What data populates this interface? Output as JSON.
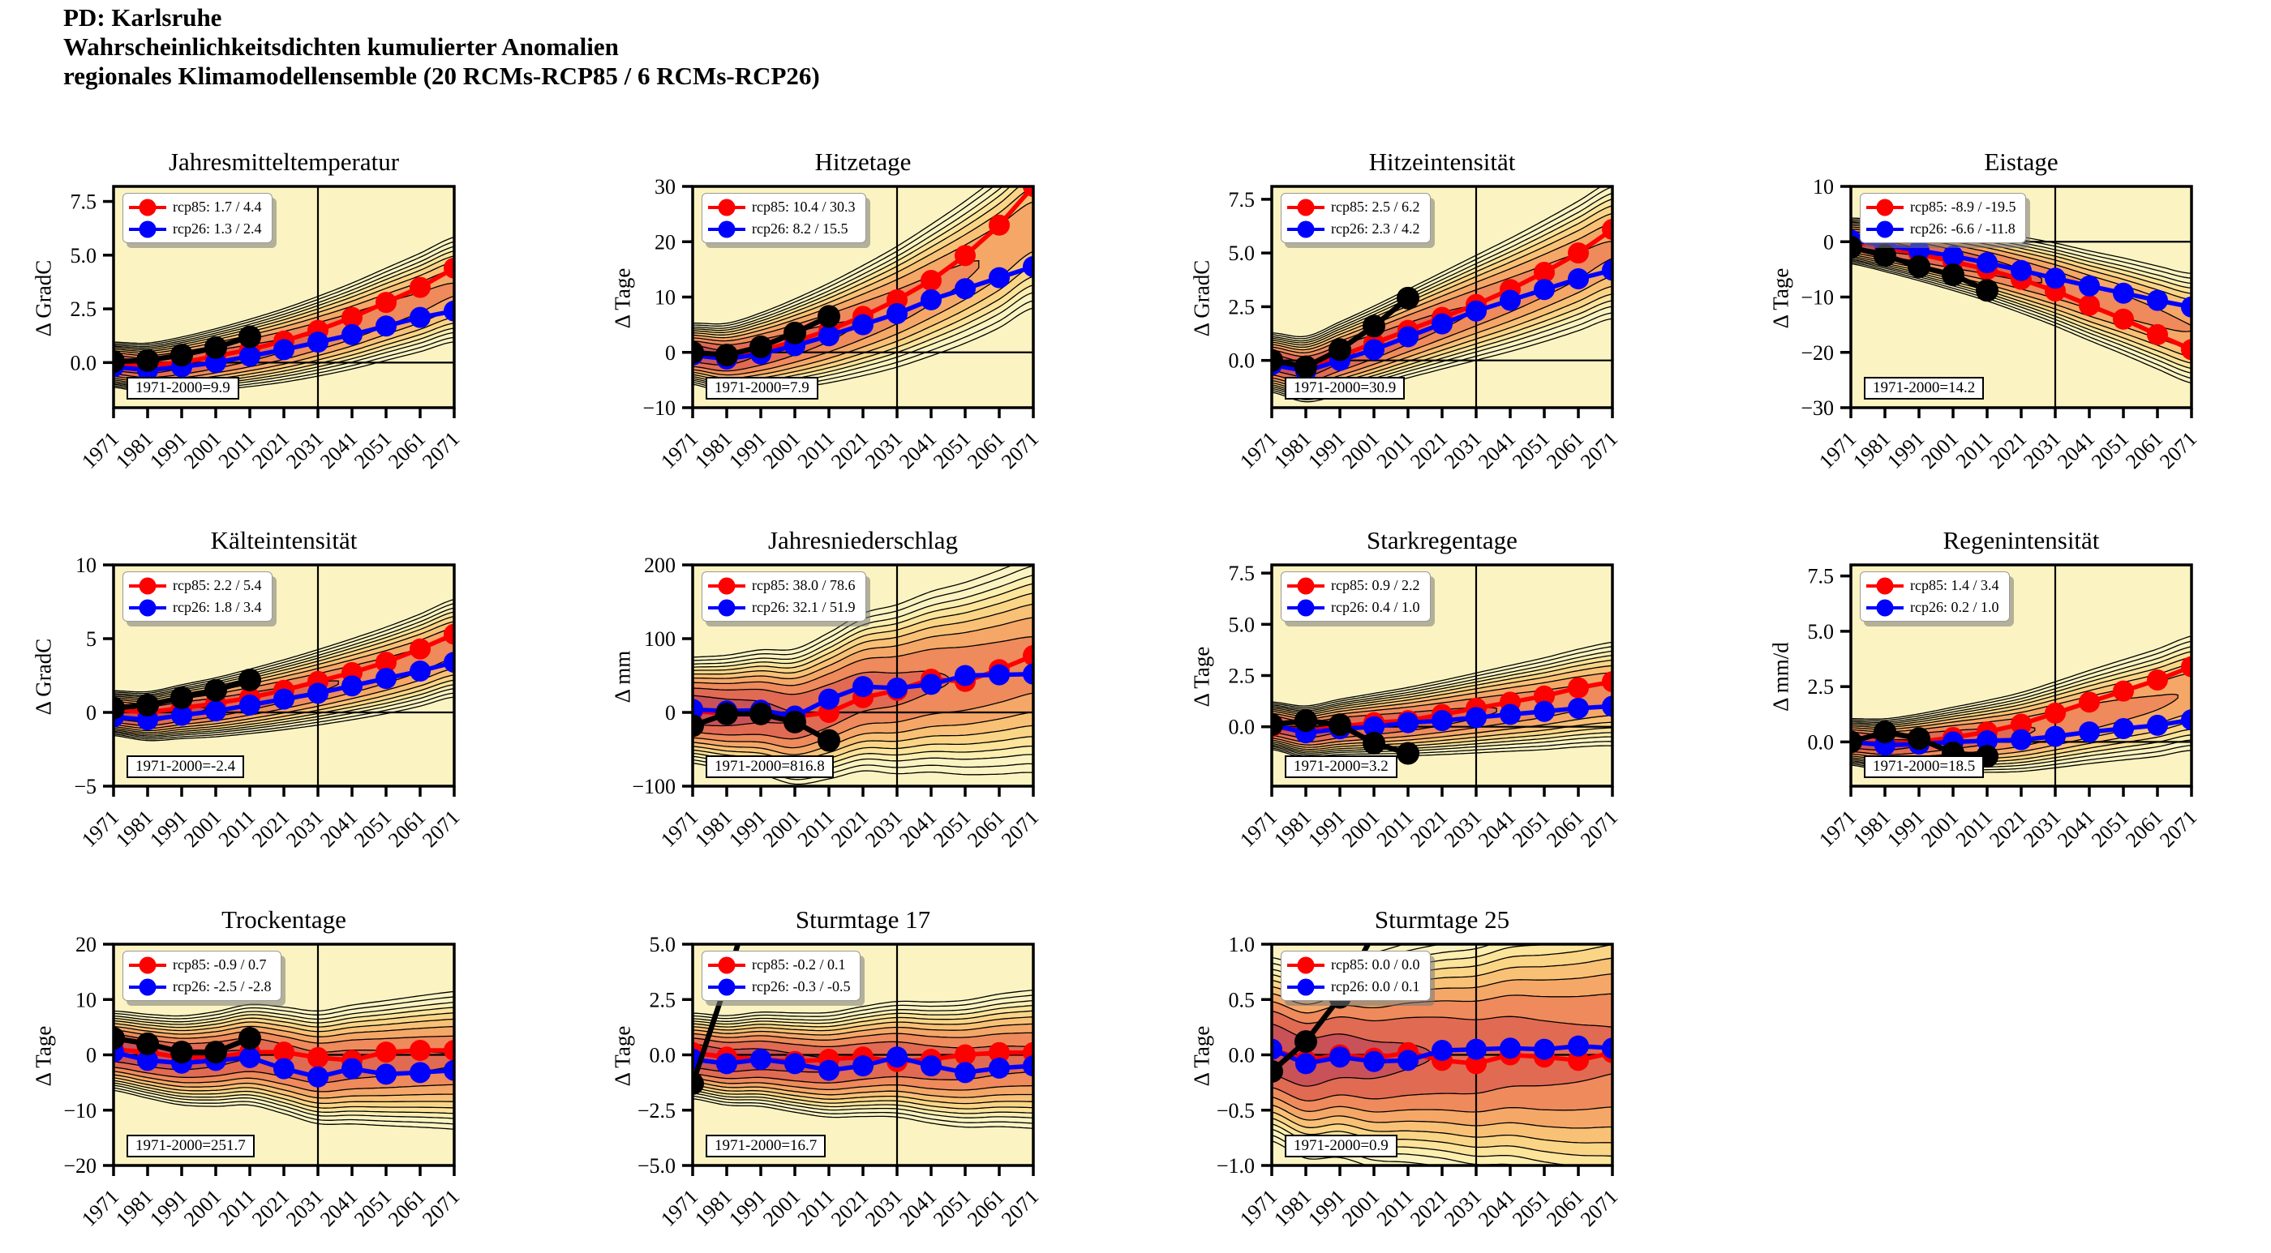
{
  "header": {
    "line1": "PD: Karlsruhe",
    "line2": "Wahrscheinlichkeitsdichten kumulierter Anomalien",
    "line3": "regionales Klimamodellensemble (20 RCMs-RCP85 / 6 RCMs-RCP26)"
  },
  "colors": {
    "rcp85": "#ff0000",
    "rcp26": "#0000ff",
    "historical": "#000000",
    "plot_bg": "#fbf4c2",
    "contour_bands": [
      "#fcefb0",
      "#fce49b",
      "#fbd586",
      "#f9c176",
      "#f5a767",
      "#ee8a5b",
      "#e16a52",
      "#c95158"
    ],
    "contour_line": "#000000"
  },
  "axis": {
    "x": [
      1971,
      1981,
      1991,
      2001,
      2011,
      2021,
      2031,
      2041,
      2051,
      2061,
      2071
    ],
    "xtick_labels": [
      "1971",
      "1981",
      "1991",
      "2001",
      "2011",
      "2021",
      "2031",
      "2041",
      "2051",
      "2061",
      "2071"
    ],
    "xlim": [
      1971,
      2071
    ],
    "vline_year": 2031,
    "hline_value": 0,
    "grid": false,
    "legend_position": "upper left"
  },
  "chart_data": [
    {
      "type": "line",
      "title": "Jahresmitteltemperatur",
      "ylabel": "Δ GradC",
      "ylim": [
        -2.1,
        8.2
      ],
      "ytick_values": [
        7.5,
        5.0,
        2.5,
        0.0
      ],
      "ytick_labels": [
        "7.5",
        "5.0",
        "2.5",
        "0.0"
      ],
      "legend": {
        "rcp85": "rcp85: 1.7 / 4.4",
        "rcp26": "rcp26: 1.3 / 2.4"
      },
      "annotation": "1971-2000=9.9",
      "series": [
        {
          "name": "rcp85",
          "values": [
            0.0,
            -0.15,
            0.0,
            0.3,
            0.6,
            1.0,
            1.5,
            2.1,
            2.8,
            3.5,
            4.4
          ]
        },
        {
          "name": "rcp26",
          "values": [
            -0.2,
            -0.35,
            -0.2,
            0.0,
            0.3,
            0.6,
            0.95,
            1.3,
            1.7,
            2.1,
            2.4
          ]
        },
        {
          "name": "beobachtet",
          "years": [
            1971,
            1981,
            1991,
            2001,
            2011
          ],
          "values": [
            0.05,
            0.1,
            0.35,
            0.7,
            1.2
          ]
        }
      ],
      "density_approx": {
        "sigma0": 0.38,
        "grow": 1.7
      }
    },
    {
      "type": "line",
      "title": "Hitzetage",
      "ylabel": "Δ Tage",
      "ylim": [
        -10,
        30
      ],
      "ytick_values": [
        30,
        20,
        10,
        0,
        -10
      ],
      "ytick_labels": [
        "30",
        "20",
        "10",
        "0",
        "−10"
      ],
      "legend": {
        "rcp85": "rcp85: 10.4 / 30.3",
        "rcp26": "rcp26: 8.2 / 15.5"
      },
      "annotation": "1971-2000=7.9",
      "series": [
        {
          "name": "rcp85",
          "values": [
            0,
            -0.8,
            0.3,
            2,
            4,
            6.5,
            9.5,
            13,
            17.5,
            23,
            30
          ]
        },
        {
          "name": "rcp26",
          "values": [
            -0.5,
            -1.2,
            -0.3,
            1.2,
            3,
            5,
            7,
            9.5,
            11.5,
            13.5,
            15.5
          ]
        },
        {
          "name": "beobachtet",
          "years": [
            1971,
            1981,
            1991,
            2001,
            2011
          ],
          "values": [
            0,
            -0.5,
            1,
            3.5,
            6.5
          ]
        }
      ],
      "density_approx": {
        "sigma0": 2.0,
        "grow": 2.2
      }
    },
    {
      "type": "line",
      "title": "Hitzeintensität",
      "ylabel": "Δ GradC",
      "ylim": [
        -2.2,
        8.1
      ],
      "ytick_values": [
        7.5,
        5.0,
        2.5,
        0.0
      ],
      "ytick_labels": [
        "7.5",
        "5.0",
        "2.5",
        "0.0"
      ],
      "legend": {
        "rcp85": "rcp85: 2.5 / 6.2",
        "rcp26": "rcp26: 2.3 / 4.2"
      },
      "annotation": "1971-2000=30.9",
      "series": [
        {
          "name": "rcp85",
          "values": [
            0,
            -0.3,
            0.2,
            0.8,
            1.4,
            2.0,
            2.6,
            3.3,
            4.1,
            5.0,
            6.1
          ]
        },
        {
          "name": "rcp26",
          "values": [
            -0.2,
            -0.5,
            0.0,
            0.5,
            1.1,
            1.7,
            2.3,
            2.8,
            3.3,
            3.8,
            4.2
          ]
        },
        {
          "name": "beobachtet",
          "years": [
            1971,
            1981,
            1991,
            2001,
            2011
          ],
          "values": [
            0,
            -0.3,
            0.5,
            1.6,
            2.9
          ]
        }
      ],
      "density_approx": {
        "sigma0": 0.5,
        "grow": 1.7
      }
    },
    {
      "type": "line",
      "title": "Eistage",
      "ylabel": "Δ Tage",
      "ylim": [
        -30,
        10
      ],
      "ytick_values": [
        10,
        0,
        -10,
        -20,
        -30
      ],
      "ytick_labels": [
        "10",
        "0",
        "−10",
        "−20",
        "−30"
      ],
      "legend": {
        "rcp85": "rcp85: -8.9 / -19.5",
        "rcp26": "rcp26: -6.6 / -11.8"
      },
      "annotation": "1971-2000=14.2",
      "series": [
        {
          "name": "rcp85",
          "values": [
            0,
            -1,
            -2.2,
            -3.6,
            -5,
            -6.8,
            -8.9,
            -11.5,
            -14,
            -16.8,
            -19.5
          ]
        },
        {
          "name": "rcp26",
          "values": [
            0.3,
            -0.6,
            -1.6,
            -2.6,
            -3.8,
            -5.2,
            -6.6,
            -8,
            -9.3,
            -10.6,
            -11.8
          ]
        },
        {
          "name": "beobachtet",
          "years": [
            1971,
            1981,
            1991,
            2001,
            2011
          ],
          "values": [
            -1,
            -2.5,
            -4.5,
            -6,
            -8.8
          ]
        }
      ],
      "density_approx": {
        "sigma0": 1.5,
        "grow": 1.8
      }
    },
    {
      "type": "line",
      "title": "Kälteintensität",
      "ylabel": "Δ GradC",
      "ylim": [
        -5,
        10
      ],
      "ytick_values": [
        10,
        5,
        0,
        -5
      ],
      "ytick_labels": [
        "10",
        "5",
        "0",
        "−5"
      ],
      "legend": {
        "rcp85": "rcp85: 2.2 / 5.4",
        "rcp26": "rcp26: 1.8 / 3.4"
      },
      "annotation": "1971-2000=-2.4",
      "series": [
        {
          "name": "rcp85",
          "values": [
            0.2,
            0.0,
            0.3,
            0.6,
            1.0,
            1.5,
            2.1,
            2.7,
            3.4,
            4.3,
            5.3
          ]
        },
        {
          "name": "rcp26",
          "values": [
            -0.3,
            -0.5,
            -0.2,
            0.1,
            0.5,
            0.9,
            1.3,
            1.8,
            2.3,
            2.8,
            3.4
          ]
        },
        {
          "name": "beobachtet",
          "years": [
            1971,
            1981,
            1991,
            2001,
            2011
          ],
          "values": [
            0.3,
            0.5,
            1.0,
            1.5,
            2.2
          ]
        }
      ],
      "density_approx": {
        "sigma0": 0.55,
        "grow": 1.5
      }
    },
    {
      "type": "line",
      "title": "Jahresniederschlag",
      "ylabel": "Δ mm",
      "ylim": [
        -100,
        200
      ],
      "ytick_values": [
        200,
        100,
        0,
        -100
      ],
      "ytick_labels": [
        "200",
        "100",
        "0",
        "−100"
      ],
      "legend": {
        "rcp85": "rcp85: 38.0 / 78.6",
        "rcp26": "rcp26: 32.1 / 51.9"
      },
      "annotation": "1971-2000=816.8",
      "series": [
        {
          "name": "rcp85",
          "values": [
            2,
            -2,
            -2,
            -6,
            0,
            20,
            30,
            45,
            42,
            58,
            77
          ]
        },
        {
          "name": "rcp26",
          "values": [
            4,
            2,
            3,
            -5,
            18,
            35,
            33,
            38,
            50,
            51,
            52
          ]
        },
        {
          "name": "beobachtet",
          "years": [
            1971,
            1981,
            1991,
            2001,
            2011
          ],
          "values": [
            -18,
            -2,
            -2,
            -13,
            -38
          ]
        }
      ],
      "density_approx": {
        "sigma0": 26,
        "grow": 1.3
      }
    },
    {
      "type": "line",
      "title": "Starkregentage",
      "ylabel": "Δ Tage",
      "ylim": [
        -2.9,
        7.9
      ],
      "ytick_values": [
        7.5,
        5.0,
        2.5,
        0.0
      ],
      "ytick_labels": [
        "7.5",
        "5.0",
        "2.5",
        "0.0"
      ],
      "legend": {
        "rcp85": "rcp85: 0.9 / 2.2",
        "rcp26": "rcp26: 0.4 / 1.0"
      },
      "annotation": "1971-2000=3.2",
      "series": [
        {
          "name": "rcp85",
          "values": [
            0.0,
            -0.2,
            0.0,
            0.2,
            0.3,
            0.6,
            0.9,
            1.2,
            1.5,
            1.9,
            2.2
          ]
        },
        {
          "name": "rcp26",
          "values": [
            0.1,
            -0.3,
            -0.1,
            0.0,
            0.2,
            0.3,
            0.45,
            0.6,
            0.75,
            0.9,
            1.0
          ]
        },
        {
          "name": "beobachtet",
          "years": [
            1971,
            1981,
            1991,
            2001,
            2011
          ],
          "values": [
            0.1,
            0.3,
            0.1,
            -0.8,
            -1.3
          ]
        }
      ],
      "density_approx": {
        "sigma0": 0.42,
        "grow": 1.5
      }
    },
    {
      "type": "line",
      "title": "Regenintensität",
      "ylabel": "Δ mm/d",
      "ylim": [
        -2.0,
        8.0
      ],
      "ytick_values": [
        7.5,
        5.0,
        2.5,
        0.0
      ],
      "ytick_labels": [
        "7.5",
        "5.0",
        "2.5",
        "0.0"
      ],
      "legend": {
        "rcp85": "rcp85: 1.4 / 3.4",
        "rcp26": "rcp26: 0.2 / 1.0"
      },
      "annotation": "1971-2000=18.5",
      "series": [
        {
          "name": "rcp85",
          "values": [
            0.0,
            -0.1,
            0.0,
            0.2,
            0.45,
            0.8,
            1.3,
            1.8,
            2.3,
            2.8,
            3.4
          ]
        },
        {
          "name": "rcp26",
          "values": [
            0.0,
            -0.15,
            -0.1,
            0.0,
            0.05,
            0.1,
            0.25,
            0.45,
            0.6,
            0.75,
            1.0
          ]
        },
        {
          "name": "beobachtet",
          "years": [
            1971,
            1981,
            1991,
            2001,
            2011
          ],
          "values": [
            0.0,
            0.45,
            0.15,
            -0.5,
            -0.65
          ]
        }
      ],
      "density_approx": {
        "sigma0": 0.38,
        "grow": 1.9
      }
    },
    {
      "type": "line",
      "title": "Trockentage",
      "ylabel": "Δ Tage",
      "ylim": [
        -20,
        20
      ],
      "ytick_values": [
        20,
        10,
        0,
        -10,
        -20
      ],
      "ytick_labels": [
        "20",
        "10",
        "0",
        "−10",
        "−20"
      ],
      "legend": {
        "rcp85": "rcp85: -0.9 / 0.7",
        "rcp26": "rcp26: -2.5 / -2.8"
      },
      "annotation": "1971-2000=251.7",
      "series": [
        {
          "name": "rcp85",
          "values": [
            1,
            0.5,
            -0.5,
            -0.5,
            0.5,
            0.5,
            -0.5,
            -1,
            0.5,
            0.8,
            0.8
          ]
        },
        {
          "name": "rcp26",
          "values": [
            0.5,
            -1,
            -1.5,
            -1,
            -0.5,
            -2.5,
            -4,
            -2.5,
            -3.5,
            -3.2,
            -2.8
          ]
        },
        {
          "name": "beobachtet",
          "years": [
            1971,
            1981,
            1991,
            2001,
            2011
          ],
          "values": [
            3,
            2,
            0.5,
            0.5,
            3
          ]
        }
      ],
      "density_approx": {
        "sigma0": 2.6,
        "grow": 0.9
      }
    },
    {
      "type": "line",
      "title": "Sturmtage 17",
      "ylabel": "Δ Tage",
      "ylim": [
        -5,
        5
      ],
      "ytick_values": [
        5.0,
        2.5,
        0.0,
        -2.5,
        -5.0
      ],
      "ytick_labels": [
        "5.0",
        "2.5",
        "0.0",
        "−2.5",
        "−5.0"
      ],
      "legend": {
        "rcp85": "rcp85: -0.2 / 0.1",
        "rcp26": "rcp26: -0.3 / -0.5"
      },
      "annotation": "1971-2000=16.7",
      "series": [
        {
          "name": "rcp85",
          "values": [
            0.1,
            -0.1,
            -0.2,
            -0.3,
            -0.2,
            -0.1,
            -0.3,
            -0.2,
            0.0,
            0.1,
            0.1
          ]
        },
        {
          "name": "rcp26",
          "values": [
            -0.2,
            -0.4,
            -0.2,
            -0.4,
            -0.7,
            -0.5,
            -0.1,
            -0.5,
            -0.8,
            -0.6,
            -0.5
          ]
        },
        {
          "name": "beobachtet",
          "years": [
            1971,
            1981,
            1991
          ],
          "values": [
            -1.3,
            3.3,
            8.5
          ]
        }
      ],
      "density_approx": {
        "sigma0": 0.7,
        "grow": 0.75
      }
    },
    {
      "type": "line",
      "title": "Sturmtage 25",
      "ylabel": "Δ Tage",
      "ylim": [
        -1,
        1
      ],
      "ytick_values": [
        1.0,
        0.5,
        0.0,
        -0.5,
        -1.0
      ],
      "ytick_labels": [
        "1.0",
        "0.5",
        "0.0",
        "−0.5",
        "−1.0"
      ],
      "legend": {
        "rcp85": "rcp85: 0.0 / 0.0",
        "rcp26": "rcp26: 0.0 / 0.1"
      },
      "annotation": "1971-2000=0.9",
      "series": [
        {
          "name": "rcp85",
          "values": [
            0.05,
            -0.05,
            0.0,
            -0.03,
            0.02,
            -0.05,
            -0.08,
            0.0,
            -0.02,
            -0.05,
            0.02
          ]
        },
        {
          "name": "rcp26",
          "values": [
            0.05,
            -0.08,
            -0.02,
            -0.06,
            -0.05,
            0.04,
            0.05,
            0.06,
            0.05,
            0.08,
            0.06
          ]
        },
        {
          "name": "beobachtet",
          "years": [
            1971,
            1981,
            1991,
            2001
          ],
          "values": [
            -0.15,
            0.12,
            0.52,
            1.1
          ]
        }
      ],
      "density_approx": {
        "sigma0": 0.3,
        "grow": 0.8
      }
    }
  ]
}
